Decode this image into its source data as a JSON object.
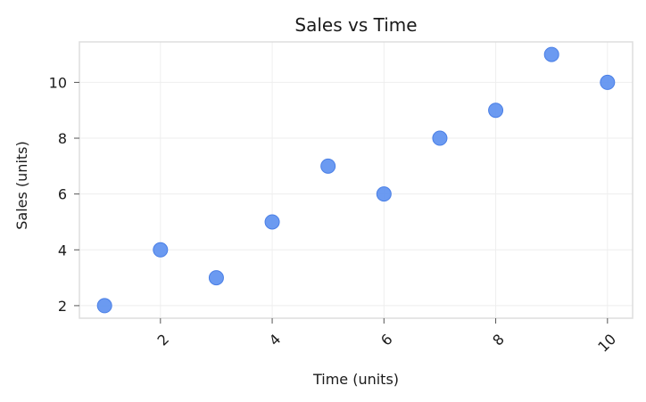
{
  "chart_data": {
    "type": "scatter",
    "title": "Sales vs Time",
    "xlabel": "Time (units)",
    "ylabel": "Sales (units)",
    "x": [
      1,
      2,
      3,
      4,
      5,
      6,
      7,
      8,
      9,
      10
    ],
    "y": [
      2,
      4,
      3,
      5,
      7,
      6,
      8,
      9,
      11,
      10
    ],
    "xlim": [
      0.55,
      10.45
    ],
    "ylim": [
      1.55,
      11.45
    ],
    "xticks": [
      2,
      4,
      6,
      8,
      10
    ],
    "yticks": [
      2,
      4,
      6,
      8,
      10
    ],
    "xtick_rotation": 45,
    "grid": true,
    "colors": {
      "marker": "#5b8ff0",
      "marker_edge": "#4a7fe6",
      "grid": "#eeeeee",
      "spine": "#dddddd",
      "text": "#1a1a1a"
    }
  }
}
